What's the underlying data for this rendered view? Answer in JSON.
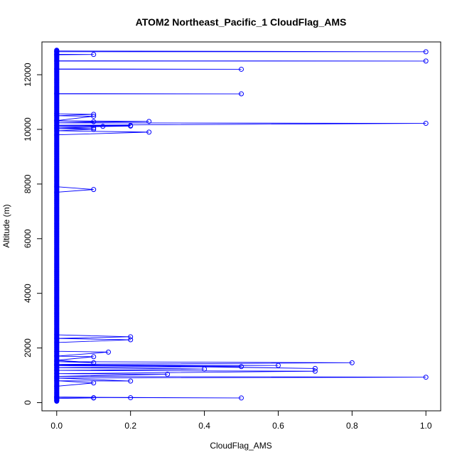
{
  "chart_data": {
    "type": "line",
    "title": "ATOM2 Northeast_Pacific_1 CloudFlag_AMS",
    "xlabel": "CloudFlag_AMS",
    "ylabel": "Altitude (m)",
    "xlim": [
      -0.04,
      1.04
    ],
    "ylim": [
      -300,
      13200
    ],
    "xticks": [
      0.0,
      0.2,
      0.4,
      0.6,
      0.8,
      1.0
    ],
    "xtick_labels": [
      "0.0",
      "0.2",
      "0.4",
      "0.6",
      "0.8",
      "1.0"
    ],
    "yticks": [
      0,
      2000,
      4000,
      6000,
      8000,
      10000,
      12000
    ],
    "ytick_labels": [
      "0",
      "2000",
      "4000",
      "6000",
      "8000",
      "10000",
      "12000"
    ],
    "grid": false,
    "legend": "none",
    "series_color": "#0000ff",
    "marker": "open-circle",
    "series": [
      {
        "points": [
          [
            0,
            80
          ],
          [
            0,
            150
          ],
          [
            0.1,
            170
          ],
          [
            0.1,
            180
          ],
          [
            0,
            200
          ],
          [
            0.5,
            170
          ],
          [
            0,
            190
          ],
          [
            0.2,
            180
          ],
          [
            0,
            210
          ],
          [
            0,
            600
          ],
          [
            0.1,
            720
          ],
          [
            0,
            800
          ],
          [
            0.2,
            790
          ],
          [
            0,
            900
          ],
          [
            1.0,
            930
          ],
          [
            0,
            960
          ],
          [
            0.3,
            1040
          ],
          [
            0,
            1060
          ],
          [
            0.7,
            1150
          ],
          [
            0,
            1180
          ],
          [
            0.4,
            1230
          ],
          [
            0,
            1280
          ],
          [
            0.5,
            1320
          ],
          [
            0,
            1350
          ],
          [
            0.6,
            1360
          ],
          [
            0,
            1380
          ],
          [
            0.7,
            1250
          ],
          [
            0,
            1400
          ],
          [
            0.8,
            1460
          ],
          [
            0,
            1500
          ],
          [
            0.1,
            1460
          ],
          [
            0,
            1550
          ],
          [
            0.1,
            1680
          ],
          [
            0,
            1700
          ],
          [
            0.14,
            1850
          ],
          [
            0,
            1880
          ],
          [
            0,
            2200
          ],
          [
            0.2,
            2300
          ],
          [
            0,
            2350
          ],
          [
            0.2,
            2410
          ],
          [
            0,
            2480
          ],
          [
            0,
            7700
          ],
          [
            0.1,
            7800
          ],
          [
            0,
            7900
          ],
          [
            0,
            9800
          ],
          [
            0.25,
            9900
          ],
          [
            0,
            9950
          ],
          [
            0.1,
            10000
          ],
          [
            0,
            10030
          ],
          [
            0.1,
            10050
          ],
          [
            0,
            10080
          ],
          [
            0.2,
            10120
          ],
          [
            0,
            10130
          ],
          [
            0.2,
            10140
          ],
          [
            0.125,
            10110
          ],
          [
            0,
            10150
          ],
          [
            1.0,
            10220
          ],
          [
            0,
            10240
          ],
          [
            0.25,
            10290
          ],
          [
            0,
            10310
          ],
          [
            0.1,
            10280
          ],
          [
            0,
            10320
          ],
          [
            0.1,
            10480
          ],
          [
            0,
            10500
          ],
          [
            0.1,
            10550
          ],
          [
            0,
            10570
          ],
          [
            0,
            11300
          ],
          [
            0.5,
            11300
          ],
          [
            0,
            11310
          ],
          [
            0,
            12200
          ],
          [
            0.5,
            12200
          ],
          [
            0,
            12210
          ],
          [
            0,
            12500
          ],
          [
            1.0,
            12500
          ],
          [
            0,
            12510
          ],
          [
            0,
            12730
          ],
          [
            0.1,
            12740
          ],
          [
            0,
            12750
          ],
          [
            0,
            12840
          ],
          [
            1.0,
            12840
          ],
          [
            0,
            12870
          ]
        ]
      }
    ]
  }
}
